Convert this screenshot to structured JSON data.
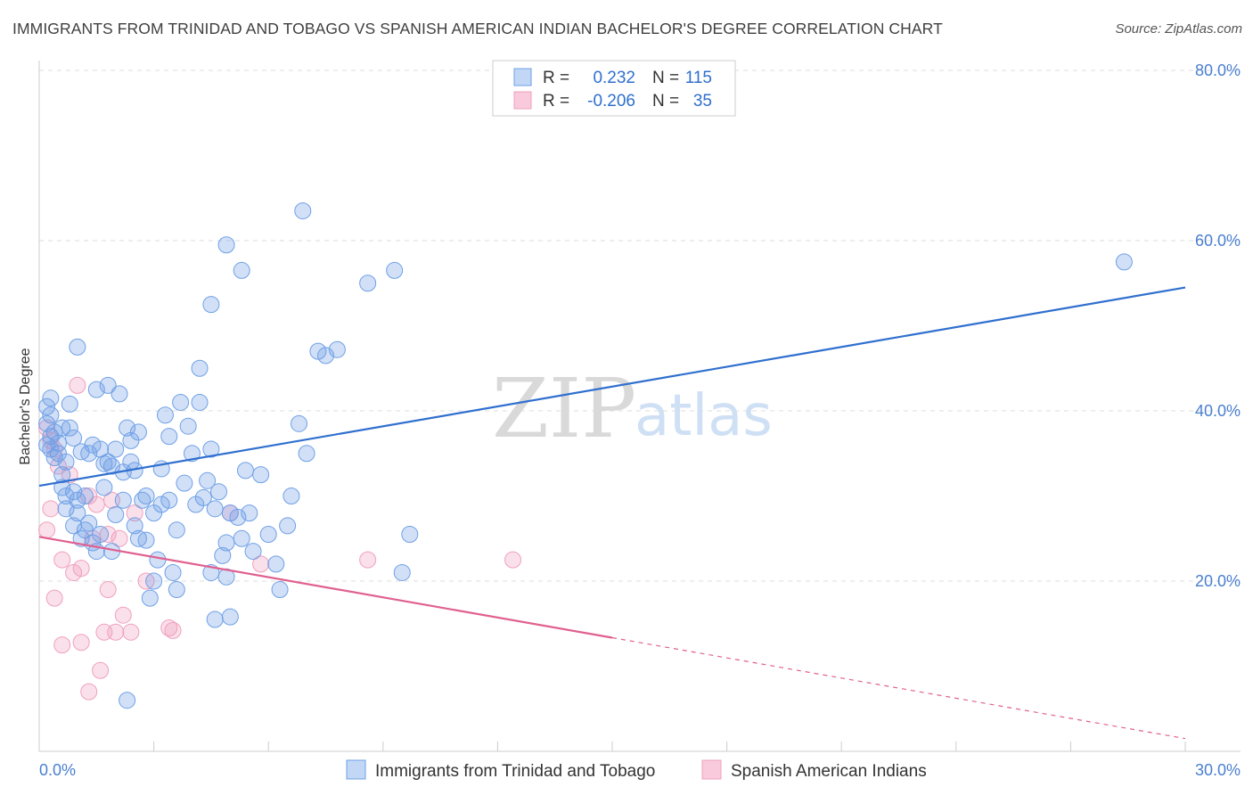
{
  "header": {
    "title": "IMMIGRANTS FROM TRINIDAD AND TOBAGO VS SPANISH AMERICAN INDIAN BACHELOR'S DEGREE CORRELATION CHART",
    "source": "Source: ZipAtlas.com"
  },
  "watermark": {
    "zip": "ZIP",
    "atlas": "atlas"
  },
  "colors": {
    "blue": "#6fa0e6",
    "blue_line": "#2f6fcf",
    "pink": "#f0a0bd",
    "pink_line": "#e0608f",
    "tick_text": "#4a7fd0"
  },
  "legend": {
    "rows": [
      {
        "r_label": "R =",
        "r_value": "0.232",
        "n_label": "N =",
        "n_value": "115"
      },
      {
        "r_label": "R =",
        "r_value": "-0.206",
        "n_label": "N =",
        "n_value": "35"
      }
    ]
  },
  "chart_data": {
    "type": "scatter",
    "title": "IMMIGRANTS FROM TRINIDAD AND TOBAGO VS SPANISH AMERICAN INDIAN BACHELOR'S DEGREE CORRELATION CHART",
    "xlabel": "",
    "ylabel": "Bachelor's Degree",
    "xlim": [
      0,
      30
    ],
    "ylim": [
      0,
      80
    ],
    "x_tick_labels": [
      "0.0%",
      "30.0%"
    ],
    "y_ticks": [
      20,
      40,
      60,
      80
    ],
    "y_tick_labels": [
      "20.0%",
      "40.0%",
      "60.0%",
      "80.0%"
    ],
    "grid": true,
    "series": [
      {
        "name": "Immigrants from Trinidad and Tobago",
        "color": "#6fa0e6",
        "r": 0.232,
        "n": 115,
        "trend": {
          "x0": 0,
          "y0": 31.2,
          "x1": 30,
          "y1": 54.5,
          "dashed_from": null
        },
        "points": [
          [
            0.2,
            38.5
          ],
          [
            0.3,
            37.0
          ],
          [
            0.2,
            36.0
          ],
          [
            0.4,
            34.5
          ],
          [
            0.5,
            35.0
          ],
          [
            0.3,
            39.5
          ],
          [
            0.6,
            38.0
          ],
          [
            0.2,
            40.5
          ],
          [
            0.3,
            41.5
          ],
          [
            0.7,
            34.0
          ],
          [
            0.8,
            40.8
          ],
          [
            0.6,
            31.0
          ],
          [
            0.9,
            30.5
          ],
          [
            1.0,
            29.5
          ],
          [
            1.2,
            30.0
          ],
          [
            0.7,
            28.5
          ],
          [
            0.9,
            26.5
          ],
          [
            1.3,
            26.8
          ],
          [
            1.1,
            25.0
          ],
          [
            1.4,
            24.5
          ],
          [
            1.5,
            23.5
          ],
          [
            1.3,
            35.0
          ],
          [
            1.6,
            35.5
          ],
          [
            1.4,
            36.0
          ],
          [
            1.8,
            34.0
          ],
          [
            2.0,
            35.5
          ],
          [
            1.9,
            33.5
          ],
          [
            2.3,
            38.0
          ],
          [
            2.4,
            36.5
          ],
          [
            2.6,
            37.5
          ],
          [
            2.2,
            32.8
          ],
          [
            2.5,
            33.0
          ],
          [
            1.7,
            33.8
          ],
          [
            2.7,
            29.5
          ],
          [
            2.8,
            30.0
          ],
          [
            3.0,
            28.0
          ],
          [
            3.2,
            29.0
          ],
          [
            3.4,
            29.5
          ],
          [
            2.5,
            26.5
          ],
          [
            2.6,
            25.0
          ],
          [
            2.8,
            24.8
          ],
          [
            3.1,
            22.5
          ],
          [
            3.5,
            21.0
          ],
          [
            3.0,
            20.0
          ],
          [
            2.9,
            18.0
          ],
          [
            3.6,
            19.0
          ],
          [
            3.3,
            39.5
          ],
          [
            3.4,
            37.0
          ],
          [
            3.9,
            38.2
          ],
          [
            3.7,
            41.0
          ],
          [
            4.2,
            41.0
          ],
          [
            4.0,
            35.0
          ],
          [
            4.5,
            35.5
          ],
          [
            4.3,
            29.8
          ],
          [
            4.7,
            30.5
          ],
          [
            4.6,
            28.5
          ],
          [
            5.0,
            28.0
          ],
          [
            5.2,
            27.5
          ],
          [
            4.9,
            24.5
          ],
          [
            5.3,
            25.0
          ],
          [
            5.6,
            23.5
          ],
          [
            6.0,
            25.5
          ],
          [
            6.2,
            22.0
          ],
          [
            6.5,
            26.5
          ],
          [
            6.3,
            19.0
          ],
          [
            4.5,
            21.0
          ],
          [
            4.9,
            20.5
          ],
          [
            4.6,
            15.5
          ],
          [
            5.0,
            15.8
          ],
          [
            4.8,
            23.0
          ],
          [
            5.4,
            33.0
          ],
          [
            5.8,
            32.5
          ],
          [
            6.6,
            30.0
          ],
          [
            7.0,
            35.0
          ],
          [
            6.8,
            38.5
          ],
          [
            4.2,
            45.0
          ],
          [
            4.5,
            52.5
          ],
          [
            4.9,
            59.5
          ],
          [
            5.3,
            56.5
          ],
          [
            6.9,
            63.5
          ],
          [
            7.3,
            47.0
          ],
          [
            7.5,
            46.5
          ],
          [
            7.8,
            47.2
          ],
          [
            8.6,
            55.0
          ],
          [
            9.3,
            56.5
          ],
          [
            9.7,
            25.5
          ],
          [
            9.5,
            21.0
          ],
          [
            2.3,
            6.0
          ],
          [
            1.0,
            47.5
          ],
          [
            0.8,
            38.0
          ],
          [
            1.5,
            42.5
          ],
          [
            2.1,
            42.0
          ],
          [
            1.8,
            43.0
          ],
          [
            0.5,
            36.2
          ],
          [
            0.4,
            37.5
          ],
          [
            0.9,
            36.8
          ],
          [
            1.1,
            35.2
          ],
          [
            1.7,
            31.0
          ],
          [
            2.2,
            29.5
          ],
          [
            2.0,
            27.8
          ],
          [
            1.2,
            26.0
          ],
          [
            1.6,
            25.5
          ],
          [
            3.8,
            31.5
          ],
          [
            4.1,
            29.0
          ],
          [
            3.6,
            26.0
          ],
          [
            4.4,
            31.8
          ],
          [
            5.5,
            28.0
          ],
          [
            3.2,
            33.2
          ],
          [
            2.4,
            34.0
          ],
          [
            0.6,
            32.5
          ],
          [
            0.3,
            35.5
          ],
          [
            0.7,
            30.0
          ],
          [
            1.0,
            28.0
          ],
          [
            1.9,
            23.5
          ],
          [
            28.4,
            57.5
          ]
        ]
      },
      {
        "name": "Spanish American Indians",
        "color": "#f0a0bd",
        "r": -0.206,
        "n": 35,
        "trend": {
          "x0": 0,
          "y0": 25.2,
          "x1": 30,
          "y1": 1.5,
          "dashed_from": 15.0
        },
        "points": [
          [
            0.2,
            38.0
          ],
          [
            0.3,
            36.5
          ],
          [
            0.4,
            35.5
          ],
          [
            0.5,
            33.5
          ],
          [
            0.3,
            28.5
          ],
          [
            0.2,
            26.0
          ],
          [
            0.6,
            22.5
          ],
          [
            0.9,
            21.0
          ],
          [
            1.1,
            21.5
          ],
          [
            0.4,
            18.0
          ],
          [
            0.6,
            12.5
          ],
          [
            1.1,
            12.8
          ],
          [
            1.3,
            7.0
          ],
          [
            1.6,
            9.5
          ],
          [
            1.7,
            14.0
          ],
          [
            1.8,
            19.0
          ],
          [
            2.0,
            14.0
          ],
          [
            2.2,
            16.0
          ],
          [
            2.4,
            14.0
          ],
          [
            1.4,
            25.0
          ],
          [
            1.8,
            25.5
          ],
          [
            2.1,
            25.0
          ],
          [
            1.5,
            29.0
          ],
          [
            2.5,
            28.0
          ],
          [
            1.3,
            30.0
          ],
          [
            1.9,
            29.5
          ],
          [
            2.8,
            20.0
          ],
          [
            3.4,
            14.5
          ],
          [
            3.5,
            14.2
          ],
          [
            5.0,
            28.0
          ],
          [
            5.8,
            22.0
          ],
          [
            8.6,
            22.5
          ],
          [
            12.4,
            22.5
          ],
          [
            1.0,
            43.0
          ],
          [
            0.8,
            32.5
          ]
        ]
      }
    ]
  },
  "bottom_legend": [
    {
      "label": "Immigrants from Trinidad and Tobago"
    },
    {
      "label": "Spanish American Indians"
    }
  ]
}
